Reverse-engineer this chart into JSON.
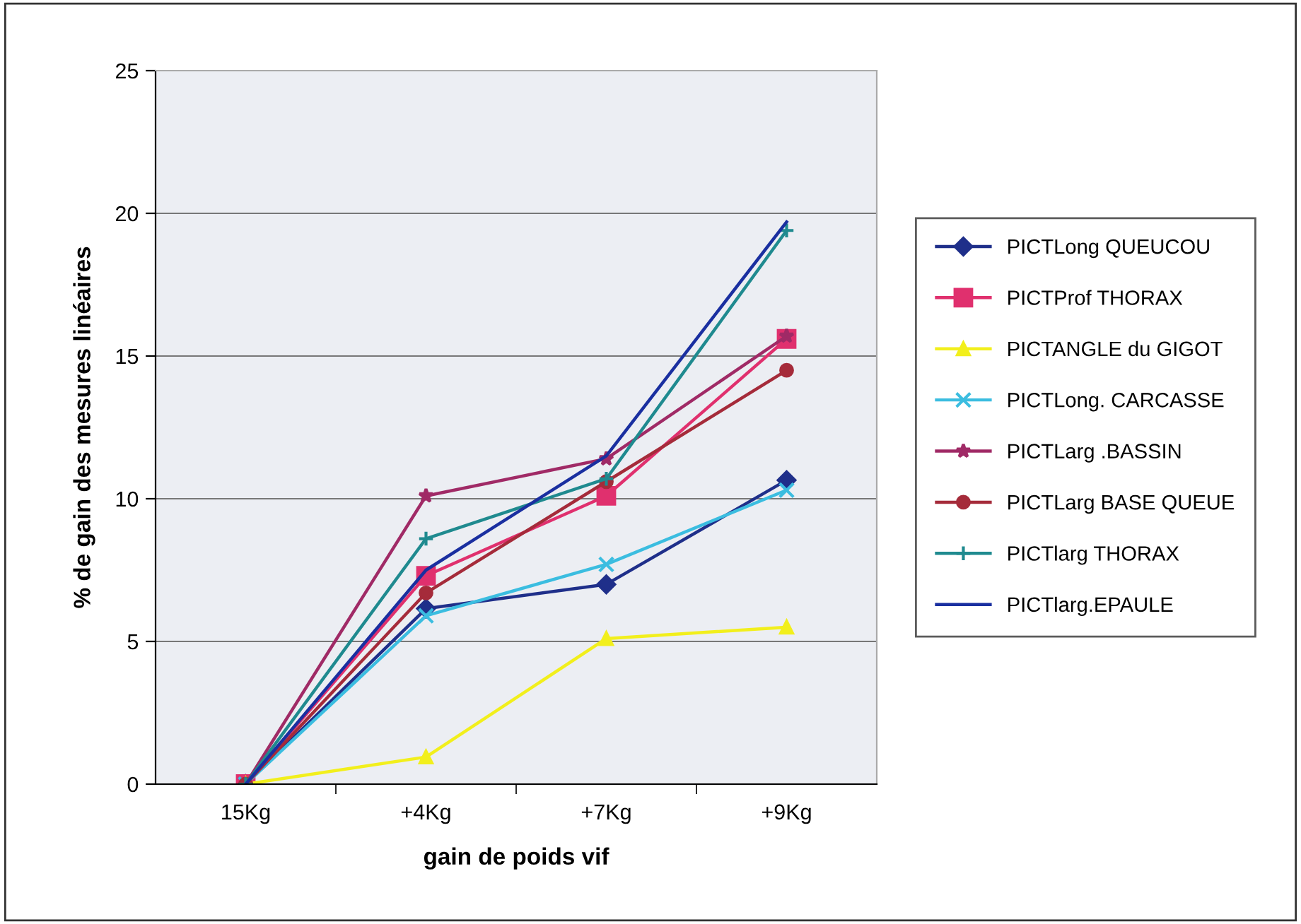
{
  "chart_data": {
    "type": "line",
    "xlabel": "gain de poids vif",
    "ylabel": "% de gain des mesures linéaires",
    "categories": [
      "15Kg",
      "+4Kg",
      "+7Kg",
      "+9Kg"
    ],
    "ylim": [
      0,
      25
    ],
    "yticks": [
      0,
      5,
      10,
      15,
      20,
      25
    ],
    "grid": "y",
    "legend": "right",
    "series": [
      {
        "name": "PICTLong QUEUCOU",
        "color": "#1f2f8a",
        "marker": "diamond",
        "values": [
          0,
          6.15,
          7.0,
          10.65
        ]
      },
      {
        "name": "PICTProf THORAX",
        "color": "#e0306e",
        "marker": "square",
        "values": [
          0,
          7.3,
          10.1,
          15.6
        ]
      },
      {
        "name": "PICTANGLE du GIGOT",
        "color": "#f2ef1c",
        "marker": "triangle",
        "values": [
          0,
          0.95,
          5.1,
          5.5
        ]
      },
      {
        "name": "PICTLong. CARCASSE",
        "color": "#3bbde0",
        "marker": "cross",
        "values": [
          0,
          5.9,
          7.7,
          10.3
        ]
      },
      {
        "name": "PICTLarg .BASSIN",
        "color": "#a02a66",
        "marker": "star",
        "values": [
          0,
          10.1,
          11.4,
          15.7
        ]
      },
      {
        "name": "PICTLarg BASE QUEUE",
        "color": "#a52b3a",
        "marker": "circle",
        "values": [
          0,
          6.7,
          10.6,
          14.5
        ]
      },
      {
        "name": "PICTlarg THORAX",
        "color": "#1f8a8f",
        "marker": "plus",
        "values": [
          0,
          8.6,
          10.7,
          19.4
        ]
      },
      {
        "name": "PICTlarg.EPAULE",
        "color": "#1a2fa0",
        "marker": "none",
        "values": [
          0,
          7.5,
          11.5,
          19.7
        ]
      }
    ]
  }
}
